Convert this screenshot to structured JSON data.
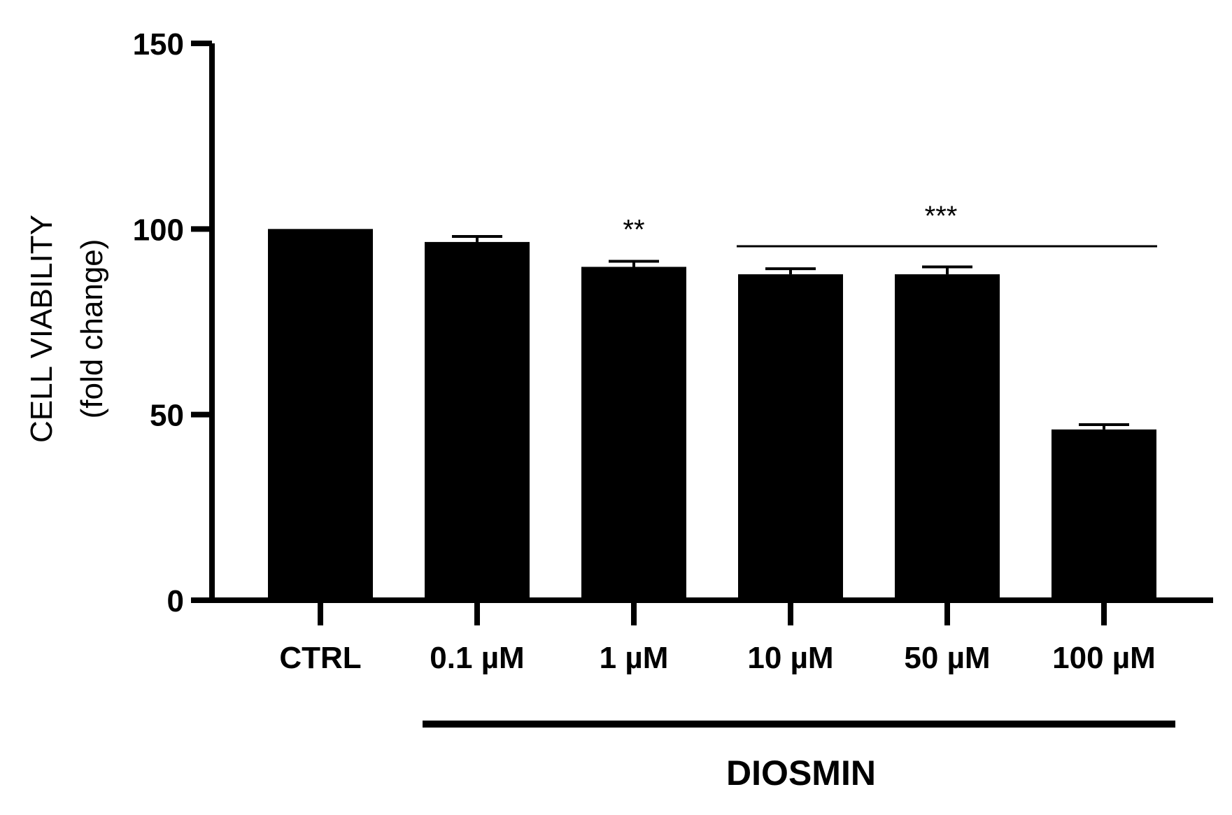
{
  "chart_data": {
    "type": "bar",
    "categories": [
      "CTRL",
      "0.1 µM",
      "1 µM",
      "10 µM",
      "50 µM",
      "100 µM"
    ],
    "values": [
      100,
      96.5,
      89.8,
      87.8,
      87.8,
      46.0
    ],
    "error": [
      0,
      1.5,
      1.5,
      1.5,
      2.0,
      1.3
    ],
    "ylabel": "CELL VIABILITY",
    "ylabel_unit": "(fold change)",
    "ylim": [
      0,
      150
    ],
    "yticks": [
      "0",
      "50",
      "100",
      "150"
    ],
    "ytick_values": [
      0,
      50,
      100,
      150
    ],
    "group_label": "DIOSMIN",
    "annotations": [
      {
        "text": "**",
        "categories": [
          "1 µM"
        ]
      },
      {
        "text": "***",
        "categories": [
          "10 µM",
          "100 µM"
        ]
      }
    ],
    "bar_color": "#000000",
    "grid": false
  }
}
